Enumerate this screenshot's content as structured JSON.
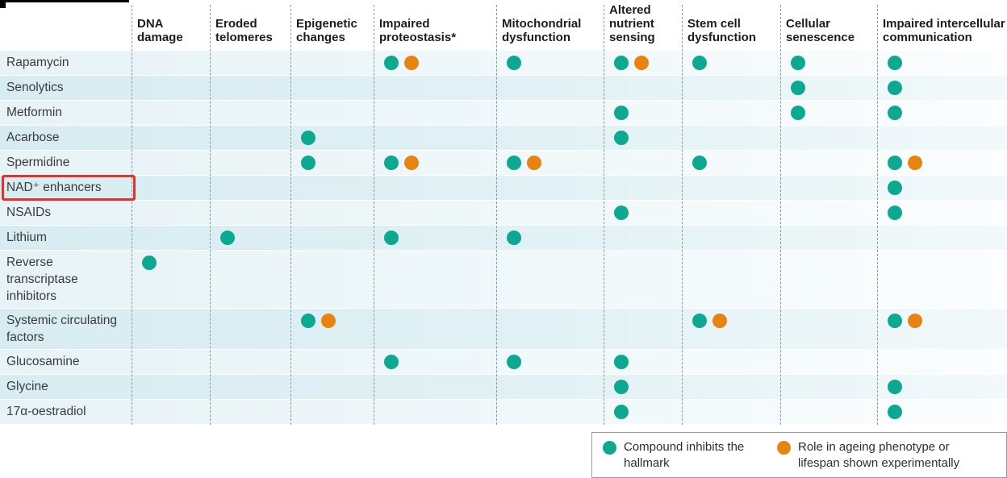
{
  "chart_data": {
    "type": "table",
    "description": "Matrix of candidate anti-ageing compounds versus hallmarks of ageing; teal dot = compound inhibits the hallmark, orange dot = role in ageing phenotype or lifespan shown experimentally",
    "columns": [
      "DNA damage",
      "Eroded telomeres",
      "Epigenetic changes",
      "Impaired proteostasis*",
      "Mitochondrial dysfunction",
      "Altered nutrient sensing",
      "Stem cell dysfunction",
      "Cellular senescence",
      "Impaired intercellular communication"
    ],
    "mark_meanings": {
      "t": "Compound inhibits the hallmark",
      "o": "Role in ageing phenotype or lifespan shown experimentally"
    },
    "rows": [
      {
        "label": "Rapamycin",
        "marks": [
          "",
          "",
          "",
          "to",
          "t",
          "to",
          "t",
          "t",
          "t"
        ]
      },
      {
        "label": "Senolytics",
        "marks": [
          "",
          "",
          "",
          "",
          "",
          "",
          "",
          "t",
          "t"
        ]
      },
      {
        "label": "Metformin",
        "marks": [
          "",
          "",
          "",
          "",
          "",
          "t",
          "",
          "t",
          "t"
        ]
      },
      {
        "label": "Acarbose",
        "marks": [
          "",
          "",
          "t",
          "",
          "",
          "t",
          "",
          "",
          ""
        ]
      },
      {
        "label": "Spermidine",
        "marks": [
          "",
          "",
          "t",
          "to",
          "to",
          "",
          "t",
          "",
          "to"
        ]
      },
      {
        "label": "NAD⁺ enhancers",
        "marks": [
          "",
          "",
          "",
          "",
          "",
          "",
          "",
          "",
          "t"
        ],
        "highlighted": true
      },
      {
        "label": "NSAIDs",
        "marks": [
          "",
          "",
          "",
          "",
          "",
          "t",
          "",
          "",
          "t"
        ]
      },
      {
        "label": "Lithium",
        "marks": [
          "",
          "t",
          "",
          "t",
          "t",
          "",
          "",
          "",
          ""
        ]
      },
      {
        "label": "Reverse transcriptase inhibitors",
        "marks": [
          "t",
          "",
          "",
          "",
          "",
          "",
          "",
          "",
          ""
        ]
      },
      {
        "label": "Systemic circulating factors",
        "marks": [
          "",
          "",
          "to",
          "",
          "",
          "",
          "to",
          "",
          "to"
        ]
      },
      {
        "label": "Glucosamine",
        "marks": [
          "",
          "",
          "",
          "t",
          "t",
          "t",
          "",
          "",
          ""
        ]
      },
      {
        "label": "Glycine",
        "marks": [
          "",
          "",
          "",
          "",
          "",
          "t",
          "",
          "",
          "t"
        ]
      },
      {
        "label": "17α-oestradiol",
        "marks": [
          "",
          "",
          "",
          "",
          "",
          "t",
          "",
          "",
          "t"
        ]
      }
    ]
  },
  "legend": {
    "items": [
      {
        "icon": "teal-dot",
        "text": "Compound inhibits the hallmark"
      },
      {
        "icon": "orange-dot",
        "text": "Role in ageing phenotype or lifespan shown experimentally"
      }
    ]
  },
  "colors": {
    "teal": "#0ca88f",
    "orange": "#e8830d",
    "highlight_red": "#e63129",
    "row_tint_dark": "#d7ecf2",
    "row_tint_light": "#e7f3f7"
  }
}
